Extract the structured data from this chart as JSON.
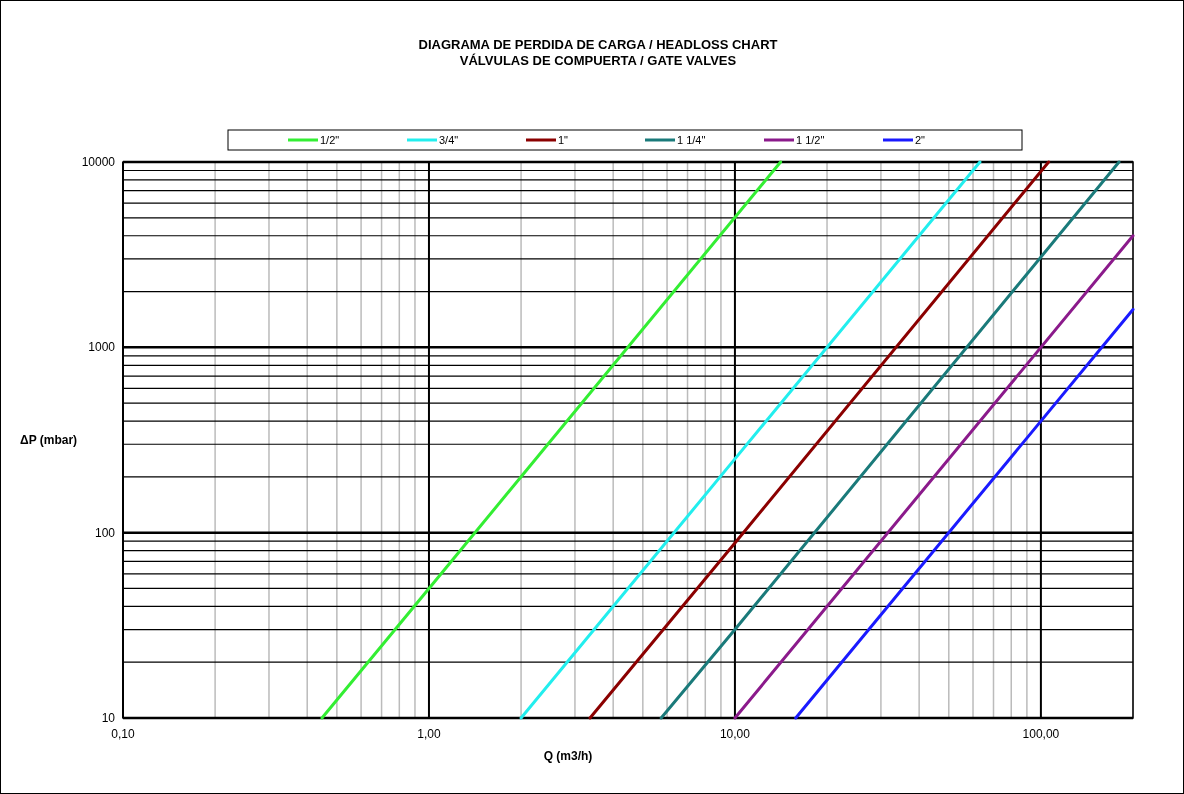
{
  "chart_data": {
    "type": "line",
    "title": "DIAGRAMA DE PERDIDA DE CARGA / HEADLOSS CHART",
    "subtitle": "VÁLVULAS  DE COMPUERTA / GATE VALVES",
    "xlabel": "Q (m3/h)",
    "ylabel": "ΔP (mbar)",
    "log": "xy",
    "grid": true,
    "legend": "top",
    "line_style": "solid",
    "xlim": [
      0.1,
      200
    ],
    "ylim": [
      10,
      10000
    ],
    "xticks": [
      {
        "value": 0.1,
        "label": "0,10"
      },
      {
        "value": 0.2,
        "label": null
      },
      {
        "value": 0.3,
        "label": null
      },
      {
        "value": 0.4,
        "label": null
      },
      {
        "value": 0.5,
        "label": null
      },
      {
        "value": 0.6,
        "label": null
      },
      {
        "value": 0.7,
        "label": null
      },
      {
        "value": 0.8,
        "label": null
      },
      {
        "value": 0.9,
        "label": null
      },
      {
        "value": 1,
        "label": "1,00"
      },
      {
        "value": 2,
        "label": null
      },
      {
        "value": 3,
        "label": null
      },
      {
        "value": 4,
        "label": null
      },
      {
        "value": 5,
        "label": null
      },
      {
        "value": 6,
        "label": null
      },
      {
        "value": 7,
        "label": null
      },
      {
        "value": 8,
        "label": null
      },
      {
        "value": 9,
        "label": null
      },
      {
        "value": 10,
        "label": "10,00"
      },
      {
        "value": 20,
        "label": null
      },
      {
        "value": 30,
        "label": null
      },
      {
        "value": 40,
        "label": null
      },
      {
        "value": 50,
        "label": null
      },
      {
        "value": 60,
        "label": null
      },
      {
        "value": 70,
        "label": null
      },
      {
        "value": 80,
        "label": null
      },
      {
        "value": 90,
        "label": null
      },
      {
        "value": 100,
        "label": "100,00"
      },
      {
        "value": 200,
        "label": null
      }
    ],
    "yticks": [
      10,
      {
        "value": 20,
        "label": null
      },
      {
        "value": 30,
        "label": null
      },
      {
        "value": 40,
        "label": null
      },
      {
        "value": 50,
        "label": null
      },
      {
        "value": 60,
        "label": null
      },
      {
        "value": 70,
        "label": null
      },
      {
        "value": 80,
        "label": null
      },
      {
        "value": 90,
        "label": null
      },
      100,
      {
        "value": 200,
        "label": null
      },
      {
        "value": 300,
        "label": null
      },
      {
        "value": 400,
        "label": null
      },
      {
        "value": 500,
        "label": null
      },
      {
        "value": 600,
        "label": null
      },
      {
        "value": 700,
        "label": null
      },
      {
        "value": 800,
        "label": null
      },
      {
        "value": 900,
        "label": null
      },
      1000,
      {
        "value": 2000,
        "label": null
      },
      {
        "value": 3000,
        "label": null
      },
      {
        "value": 4000,
        "label": null
      },
      {
        "value": 5000,
        "label": null
      },
      {
        "value": 6000,
        "label": null
      },
      {
        "value": 7000,
        "label": null
      },
      {
        "value": 8000,
        "label": null
      },
      {
        "value": 9000,
        "label": null
      },
      10000
    ],
    "series": [
      {
        "name": "1/2\"",
        "color": "#33ee33",
        "x": [
          0.447,
          1,
          14.1
        ],
        "values": [
          10,
          50,
          10000
        ]
      },
      {
        "name": "3/4\"",
        "color": "#22eeee",
        "x": [
          2,
          10,
          63.2
        ],
        "values": [
          10,
          250,
          10000
        ]
      },
      {
        "name": "1\"",
        "color": "#8b0000",
        "x": [
          3.36,
          10,
          106
        ],
        "values": [
          10,
          88,
          10000
        ]
      },
      {
        "name": "1 1/4\"",
        "color": "#1a7a7a",
        "x": [
          5.74,
          10,
          180
        ],
        "values": [
          10,
          30,
          10000
        ]
      },
      {
        "name": "1 1/2\"",
        "color": "#8b1a8b",
        "x": [
          10,
          100,
          200
        ],
        "values": [
          10,
          1000,
          4000
        ]
      },
      {
        "name": "2\"",
        "color": "#1a1aff",
        "x": [
          15.8,
          100,
          200
        ],
        "values": [
          10,
          400,
          1600
        ]
      }
    ]
  }
}
